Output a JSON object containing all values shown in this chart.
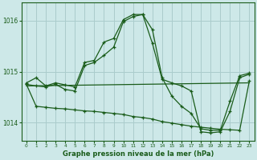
{
  "background_color": "#cde8e8",
  "grid_color": "#aacccc",
  "line_color": "#1a5c1a",
  "title": "Graphe pression niveau de la mer (hPa)",
  "xlim": [
    -0.5,
    23.5
  ],
  "ylim": [
    1013.65,
    1016.35
  ],
  "yticks": [
    1014,
    1015,
    1016
  ],
  "xticks": [
    0,
    1,
    2,
    3,
    4,
    5,
    6,
    7,
    8,
    9,
    10,
    11,
    12,
    13,
    14,
    15,
    16,
    17,
    18,
    19,
    20,
    21,
    22,
    23
  ],
  "series1_x": [
    0,
    1,
    2,
    3,
    4,
    5,
    6,
    7,
    8,
    9,
    10,
    11,
    12,
    13,
    14,
    15,
    16,
    17,
    18,
    19,
    20,
    21,
    22,
    23
  ],
  "series1_y": [
    1014.78,
    1014.88,
    1014.72,
    1014.78,
    1014.74,
    1014.7,
    1015.18,
    1015.22,
    1015.58,
    1015.65,
    1016.02,
    1016.12,
    1016.12,
    1015.82,
    1014.88,
    1014.52,
    1014.32,
    1014.18,
    1013.88,
    1013.85,
    1013.85,
    1014.42,
    1014.92,
    1014.97
  ],
  "series2_x": [
    0,
    1,
    2,
    3,
    4,
    5,
    6,
    7,
    8,
    9,
    10,
    11,
    12,
    13,
    14,
    15,
    16,
    17,
    18,
    19,
    20,
    21,
    22,
    23
  ],
  "series2_y": [
    1014.75,
    1014.72,
    1014.7,
    1014.75,
    1014.65,
    1014.62,
    1015.12,
    1015.18,
    1015.32,
    1015.48,
    1015.98,
    1016.08,
    1016.12,
    1015.55,
    1014.85,
    1014.78,
    1014.72,
    1014.62,
    1013.82,
    1013.8,
    1013.82,
    1014.22,
    1014.88,
    1014.95
  ],
  "series3_x": [
    0,
    1,
    2,
    3,
    4,
    5,
    6,
    7,
    8,
    9,
    10,
    11,
    12,
    13,
    14,
    15,
    16,
    17,
    18,
    19,
    20,
    21,
    22,
    23
  ],
  "series3_y": [
    1014.75,
    1014.32,
    1014.3,
    1014.28,
    1014.27,
    1014.25,
    1014.23,
    1014.22,
    1014.2,
    1014.18,
    1014.16,
    1014.12,
    1014.1,
    1014.07,
    1014.02,
    1013.99,
    1013.96,
    1013.93,
    1013.91,
    1013.89,
    1013.87,
    1013.86,
    1013.85,
    1014.82
  ],
  "series4_x": [
    0,
    23
  ],
  "series4_y": [
    1014.72,
    1014.78
  ]
}
